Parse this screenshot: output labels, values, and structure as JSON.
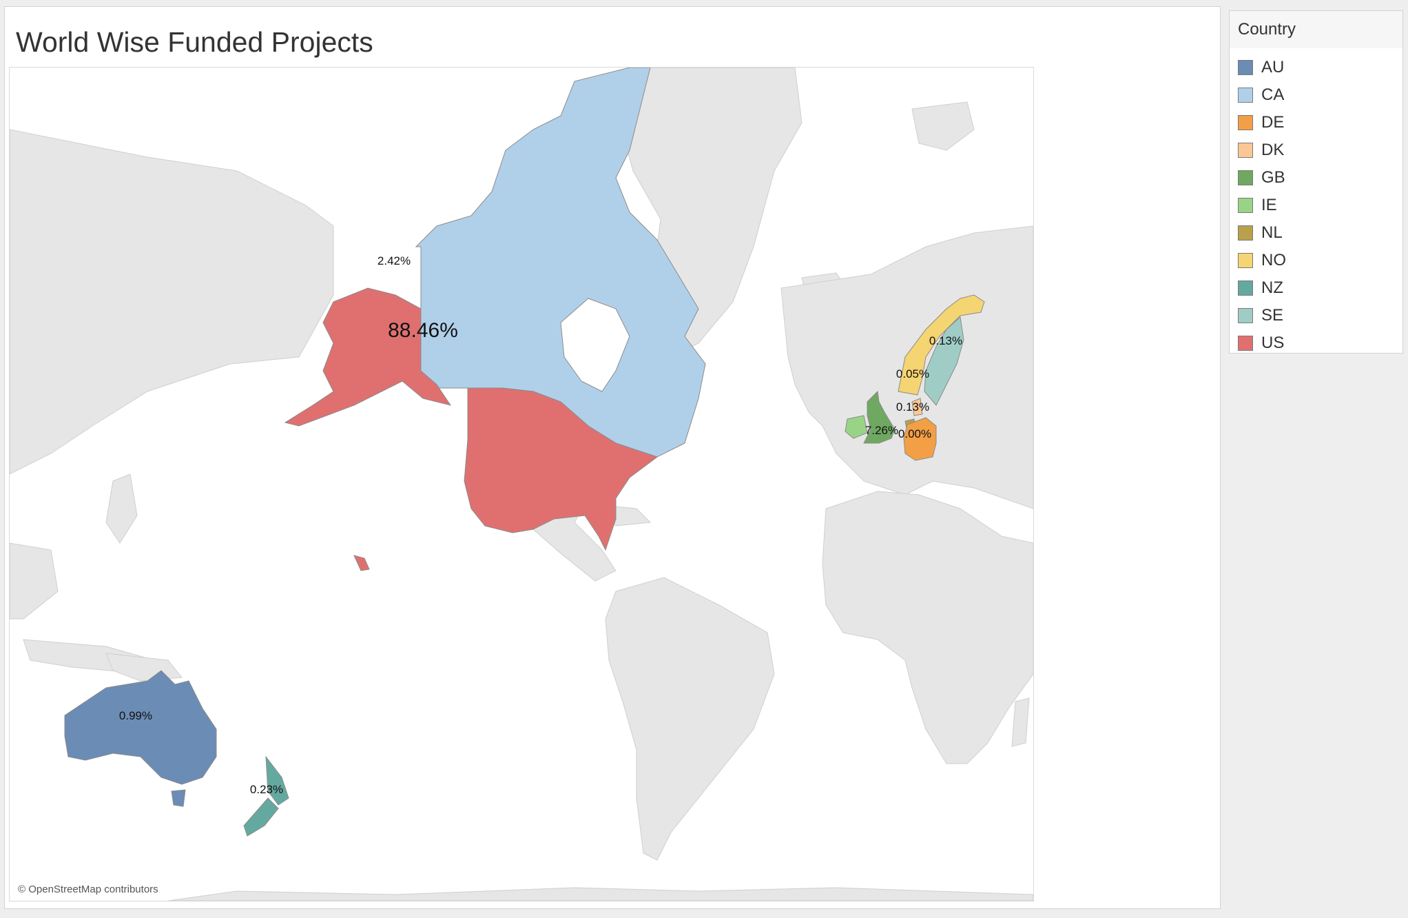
{
  "title": "World Wise Funded Projects",
  "attribution": "© OpenStreetMap contributors",
  "legend": {
    "title": "Country",
    "items": [
      {
        "code": "AU",
        "color": "#6b8cb5"
      },
      {
        "code": "CA",
        "color": "#b0d0ea"
      },
      {
        "code": "DE",
        "color": "#f39f45"
      },
      {
        "code": "DK",
        "color": "#fcc793"
      },
      {
        "code": "GB",
        "color": "#6fa861"
      },
      {
        "code": "IE",
        "color": "#99d486"
      },
      {
        "code": "NL",
        "color": "#b9a04a"
      },
      {
        "code": "NO",
        "color": "#f5d472"
      },
      {
        "code": "NZ",
        "color": "#64a99f"
      },
      {
        "code": "SE",
        "color": "#9fcdc6"
      },
      {
        "code": "US",
        "color": "#e07070"
      }
    ]
  },
  "map_labels": {
    "US": "88.46%",
    "GB": "7.26%",
    "CA": "2.42%",
    "AU": "0.99%",
    "NZ": "0.23%",
    "SE": "0.13%",
    "DK": "0.13%",
    "NO": "0.05%",
    "DE": "0.00%"
  }
}
